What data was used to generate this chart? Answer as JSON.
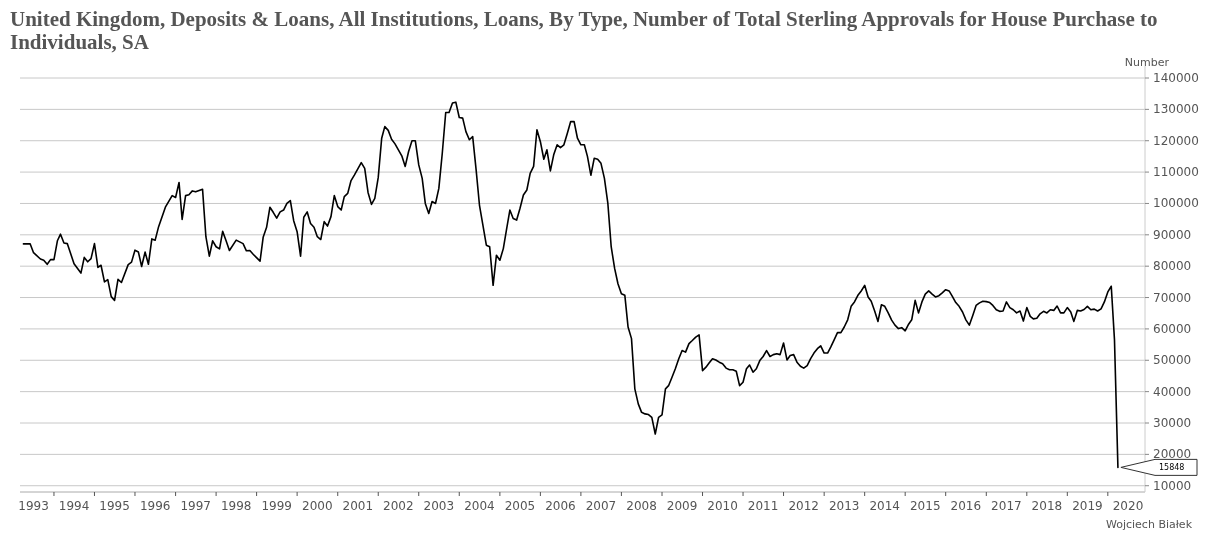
{
  "chart_data": {
    "type": "line",
    "title": "United Kingdom, Deposits & Loans, All Institutions, Loans, By Type, Number of Total Sterling Approvals for House Purchase to Individuals, SA",
    "ylabel": "Number",
    "grid": "y",
    "xlim": [
      "1993-03",
      "2020-12"
    ],
    "ylim": [
      8000,
      140000
    ],
    "yticks": [
      10000,
      20000,
      30000,
      40000,
      50000,
      60000,
      70000,
      80000,
      90000,
      100000,
      110000,
      120000,
      130000,
      140000
    ],
    "xticks": [
      {
        "value": "1993-07",
        "label": "1993"
      },
      {
        "value": "1994-01",
        "label": null
      },
      {
        "value": "1994-07",
        "label": "1994"
      },
      {
        "value": "1995-01",
        "label": null
      },
      {
        "value": "1995-07",
        "label": "1995"
      },
      {
        "value": "1996-01",
        "label": null
      },
      {
        "value": "1996-07",
        "label": "1996"
      },
      {
        "value": "1997-01",
        "label": null
      },
      {
        "value": "1997-07",
        "label": "1997"
      },
      {
        "value": "1998-01",
        "label": null
      },
      {
        "value": "1998-07",
        "label": "1998"
      },
      {
        "value": "1999-01",
        "label": null
      },
      {
        "value": "1999-07",
        "label": "1999"
      },
      {
        "value": "2000-01",
        "label": null
      },
      {
        "value": "2000-07",
        "label": "2000"
      },
      {
        "value": "2001-01",
        "label": null
      },
      {
        "value": "2001-07",
        "label": "2001"
      },
      {
        "value": "2002-01",
        "label": null
      },
      {
        "value": "2002-07",
        "label": "2002"
      },
      {
        "value": "2003-01",
        "label": null
      },
      {
        "value": "2003-07",
        "label": "2003"
      },
      {
        "value": "2004-01",
        "label": null
      },
      {
        "value": "2004-07",
        "label": "2004"
      },
      {
        "value": "2005-01",
        "label": null
      },
      {
        "value": "2005-07",
        "label": "2005"
      },
      {
        "value": "2006-01",
        "label": null
      },
      {
        "value": "2006-07",
        "label": "2006"
      },
      {
        "value": "2007-01",
        "label": null
      },
      {
        "value": "2007-07",
        "label": "2007"
      },
      {
        "value": "2008-01",
        "label": null
      },
      {
        "value": "2008-07",
        "label": "2008"
      },
      {
        "value": "2009-01",
        "label": null
      },
      {
        "value": "2009-07",
        "label": "2009"
      },
      {
        "value": "2010-01",
        "label": null
      },
      {
        "value": "2010-07",
        "label": "2010"
      },
      {
        "value": "2011-01",
        "label": null
      },
      {
        "value": "2011-07",
        "label": "2011"
      },
      {
        "value": "2012-01",
        "label": null
      },
      {
        "value": "2012-07",
        "label": "2012"
      },
      {
        "value": "2013-01",
        "label": null
      },
      {
        "value": "2013-07",
        "label": "2013"
      },
      {
        "value": "2014-01",
        "label": null
      },
      {
        "value": "2014-07",
        "label": "2014"
      },
      {
        "value": "2015-01",
        "label": null
      },
      {
        "value": "2015-07",
        "label": "2015"
      },
      {
        "value": "2016-01",
        "label": null
      },
      {
        "value": "2016-07",
        "label": "2016"
      },
      {
        "value": "2017-01",
        "label": null
      },
      {
        "value": "2017-07",
        "label": "2017"
      },
      {
        "value": "2018-01",
        "label": null
      },
      {
        "value": "2018-07",
        "label": "2018"
      },
      {
        "value": "2019-01",
        "label": null
      },
      {
        "value": "2019-07",
        "label": "2019"
      },
      {
        "value": "2020-01",
        "label": null
      },
      {
        "value": "2020-07",
        "label": "2020"
      }
    ],
    "annotations": [
      {
        "text": "15848",
        "x": "2020-04",
        "y": 15848
      },
      "Wojciech Białek"
    ],
    "series": [
      {
        "color": "#000000",
        "x": [
          "1993-04",
          "1993-06",
          "1993-07",
          "1993-09",
          "1993-10",
          "1993-11",
          "1993-12",
          "1994-01",
          "1994-02",
          "1994-03",
          "1994-04",
          "1994-05",
          "1994-07",
          "1994-09",
          "1994-10",
          "1994-11",
          "1994-12",
          "1995-01",
          "1995-02",
          "1995-03",
          "1995-04",
          "1995-05",
          "1995-06",
          "1995-07",
          "1995-08",
          "1995-09",
          "1995-11",
          "1995-12",
          "1996-01",
          "1996-02",
          "1996-03",
          "1996-04",
          "1996-05",
          "1996-06",
          "1996-07",
          "1996-08",
          "1996-10",
          "1996-12",
          "1997-01",
          "1997-02",
          "1997-03",
          "1997-04",
          "1997-05",
          "1997-06",
          "1997-07",
          "1997-09",
          "1997-10",
          "1997-11",
          "1997-12",
          "1998-01",
          "1998-02",
          "1998-03",
          "1998-04",
          "1998-05",
          "1998-07",
          "1998-09",
          "1998-10",
          "1998-11",
          "1998-12",
          "1999-02",
          "1999-03",
          "1999-04",
          "1999-05",
          "1999-06",
          "1999-07",
          "1999-08",
          "1999-09",
          "1999-10",
          "1999-11",
          "1999-12",
          "2000-01",
          "2000-02",
          "2000-03",
          "2000-04",
          "2000-05",
          "2000-06",
          "2000-07",
          "2000-08",
          "2000-09",
          "2000-10",
          "2000-11",
          "2000-12",
          "2001-01",
          "2001-02",
          "2001-03",
          "2001-04",
          "2001-05",
          "2001-06",
          "2001-08",
          "2001-09",
          "2001-10",
          "2001-11",
          "2001-12",
          "2002-01",
          "2002-02",
          "2002-03",
          "2002-04",
          "2002-05",
          "2002-06",
          "2002-08",
          "2002-09",
          "2002-10",
          "2002-11",
          "2002-12",
          "2003-01",
          "2003-02",
          "2003-03",
          "2003-04",
          "2003-05",
          "2003-06",
          "2003-07",
          "2003-08",
          "2003-09",
          "2003-10",
          "2003-11",
          "2003-12",
          "2004-01",
          "2004-02",
          "2004-03",
          "2004-04",
          "2004-05",
          "2004-06",
          "2004-07",
          "2004-08",
          "2004-09",
          "2004-10",
          "2004-11",
          "2004-12",
          "2005-01",
          "2005-02",
          "2005-03",
          "2005-04",
          "2005-05",
          "2005-06",
          "2005-07",
          "2005-08",
          "2005-09",
          "2005-10",
          "2005-11",
          "2005-12",
          "2006-01",
          "2006-02",
          "2006-03",
          "2006-04",
          "2006-05",
          "2006-06",
          "2006-07",
          "2006-08",
          "2006-09",
          "2006-10",
          "2006-11",
          "2006-12",
          "2007-01",
          "2007-02",
          "2007-03",
          "2007-04",
          "2007-05",
          "2007-06",
          "2007-07",
          "2007-08",
          "2007-09",
          "2007-10",
          "2007-11",
          "2007-12",
          "2008-01",
          "2008-02",
          "2008-03",
          "2008-04",
          "2008-05",
          "2008-06",
          "2008-07",
          "2008-08",
          "2008-09",
          "2008-10",
          "2008-11",
          "2008-12",
          "2009-01",
          "2009-02",
          "2009-03",
          "2009-04",
          "2009-05",
          "2009-06",
          "2009-07",
          "2009-08",
          "2009-09",
          "2009-10",
          "2009-11",
          "2009-12",
          "2010-01",
          "2010-02",
          "2010-03",
          "2010-04",
          "2010-05",
          "2010-06",
          "2010-07",
          "2010-08",
          "2010-09",
          "2010-10",
          "2010-11",
          "2010-12",
          "2011-01",
          "2011-02",
          "2011-03",
          "2011-04",
          "2011-05",
          "2011-06",
          "2011-07",
          "2011-08",
          "2011-09",
          "2011-10",
          "2011-11",
          "2011-12",
          "2012-01",
          "2012-02",
          "2012-03",
          "2012-04",
          "2012-05",
          "2012-06",
          "2012-07",
          "2012-08",
          "2012-09",
          "2012-10",
          "2012-11",
          "2012-12",
          "2013-01",
          "2013-02",
          "2013-03",
          "2013-04",
          "2013-05",
          "2013-06",
          "2013-07",
          "2013-08",
          "2013-09",
          "2013-10",
          "2013-11",
          "2013-12",
          "2014-01",
          "2014-02",
          "2014-03",
          "2014-04",
          "2014-05",
          "2014-06",
          "2014-07",
          "2014-08",
          "2014-09",
          "2014-10",
          "2014-11",
          "2014-12",
          "2015-01",
          "2015-02",
          "2015-03",
          "2015-04",
          "2015-05",
          "2015-06",
          "2015-07",
          "2015-08",
          "2015-09",
          "2015-10",
          "2015-11",
          "2015-12",
          "2016-01",
          "2016-02",
          "2016-03",
          "2016-04",
          "2016-05",
          "2016-06",
          "2016-07",
          "2016-08",
          "2016-09",
          "2016-10",
          "2016-11",
          "2016-12",
          "2017-01",
          "2017-02",
          "2017-03",
          "2017-04",
          "2017-05",
          "2017-06",
          "2017-07",
          "2017-08",
          "2017-09",
          "2017-10",
          "2017-11",
          "2017-12",
          "2018-01",
          "2018-02",
          "2018-03",
          "2018-04",
          "2018-05",
          "2018-06",
          "2018-07",
          "2018-08",
          "2018-09",
          "2018-10",
          "2018-11",
          "2018-12",
          "2019-01",
          "2019-02",
          "2019-03",
          "2019-04",
          "2019-05",
          "2019-06",
          "2019-07",
          "2019-08",
          "2019-09",
          "2019-10",
          "2019-11",
          "2019-12",
          "2020-01",
          "2020-02",
          "2020-03",
          "2020-04"
        ],
        "values": [
          87100,
          87100,
          84300,
          82300,
          81900,
          80600,
          82100,
          82100,
          88100,
          90200,
          87400,
          87200,
          80800,
          77800,
          82800,
          81400,
          82400,
          87200,
          79600,
          80300,
          75000,
          75700,
          70300,
          69100,
          75800,
          74800,
          80500,
          81300,
          85100,
          84500,
          79900,
          84500,
          80600,
          88700,
          88300,
          92600,
          98800,
          102500,
          101900,
          106700,
          94900,
          102500,
          102800,
          104000,
          103700,
          104500,
          89400,
          83200,
          88100,
          86200,
          85500,
          91100,
          88100,
          85000,
          88300,
          87200,
          84900,
          85000,
          83800,
          81600,
          89200,
          92400,
          98800,
          97100,
          95300,
          97300,
          97900,
          100000,
          100900,
          94500,
          91000,
          83200,
          95600,
          97300,
          93600,
          92400,
          89400,
          88500,
          94200,
          92800,
          95800,
          102500,
          99000,
          97900,
          102200,
          103200,
          107300,
          109100,
          113000,
          111200,
          103500,
          99700,
          101600,
          108300,
          120800,
          124500,
          123300,
          120500,
          119000,
          115200,
          111800,
          116500,
          120000,
          120000,
          112300,
          108000,
          100000,
          96800,
          100600,
          100000,
          104800,
          116000,
          129000,
          129000,
          132000,
          132300,
          127400,
          127200,
          122900,
          120300,
          121300,
          110700,
          99500,
          93100,
          86700,
          86200,
          73900,
          83500,
          81900,
          85600,
          91500,
          97900,
          95200,
          94700,
          98400,
          102700,
          104300,
          109600,
          111800,
          123500,
          119700,
          114100,
          117100,
          110400,
          115500,
          118700,
          117800,
          118700,
          122400,
          126100,
          126100,
          120800,
          118700,
          118700,
          115000,
          109000,
          114400,
          114100,
          112800,
          108000,
          100000,
          86200,
          79300,
          74400,
          71200,
          70700,
          60600,
          56900,
          40900,
          36100,
          33400,
          32900,
          32700,
          31800,
          26500,
          31800,
          32600,
          40900,
          41900,
          44600,
          47300,
          50500,
          53100,
          52600,
          55300,
          56300,
          57400,
          58100,
          46700,
          47800,
          49100,
          50500,
          50100,
          49400,
          48900,
          47500,
          47000,
          47000,
          46500,
          41900,
          43000,
          47300,
          48500,
          46200,
          47300,
          49900,
          51200,
          53100,
          51200,
          51800,
          52100,
          51800,
          55500,
          50100,
          51500,
          51800,
          49400,
          48100,
          47500,
          48300,
          50500,
          52300,
          53700,
          54600,
          52300,
          52300,
          54200,
          56500,
          58800,
          58800,
          60600,
          62900,
          67200,
          68600,
          70700,
          72100,
          73900,
          70200,
          68800,
          65700,
          62400,
          67700,
          67200,
          65100,
          62800,
          61200,
          60100,
          60400,
          59400,
          61500,
          62900,
          69100,
          65100,
          68600,
          71100,
          72100,
          71100,
          70200,
          70600,
          71500,
          72500,
          72100,
          70400,
          68400,
          67200,
          65400,
          62900,
          61200,
          64300,
          67500,
          68300,
          68800,
          68700,
          68400,
          67500,
          66100,
          65600,
          65700,
          68600,
          66800,
          66100,
          65100,
          65700,
          62500,
          66800,
          64000,
          63200,
          63400,
          64800,
          65600,
          65100,
          66100,
          65900,
          67300,
          65100,
          65100,
          66800,
          65400,
          62400,
          65900,
          65700,
          66200,
          67200,
          66100,
          66300,
          65700,
          66400,
          68600,
          71800,
          73600,
          56500,
          15848
        ]
      }
    ]
  }
}
